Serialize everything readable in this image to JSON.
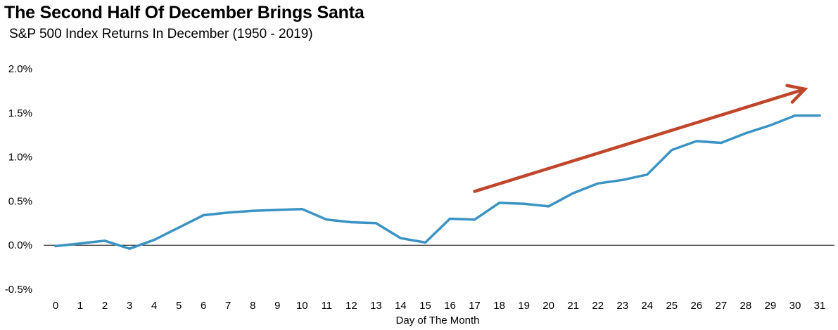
{
  "chart_data": {
    "type": "line",
    "title": "The Second Half Of December Brings Santa",
    "subtitle": "S&P 500 Index Returns In December (1950 - 2019)",
    "xlabel": "Day of The Month",
    "ylabel": "",
    "ylim": [
      -0.5,
      2.0
    ],
    "xlim": [
      0,
      31
    ],
    "y_ticks": [
      {
        "value": 2.0,
        "label": "2.0%"
      },
      {
        "value": 1.5,
        "label": "1.5%"
      },
      {
        "value": 1.0,
        "label": "1.0%"
      },
      {
        "value": 0.5,
        "label": "0.5%"
      },
      {
        "value": 0.0,
        "label": "0.0%"
      },
      {
        "value": -0.5,
        "label": "-0.5%"
      }
    ],
    "x_ticks": [
      "0",
      "1",
      "2",
      "3",
      "4",
      "5",
      "6",
      "7",
      "8",
      "9",
      "10",
      "11",
      "12",
      "13",
      "14",
      "15",
      "16",
      "17",
      "18",
      "19",
      "20",
      "21",
      "22",
      "23",
      "24",
      "25",
      "26",
      "27",
      "28",
      "29",
      "30",
      "31"
    ],
    "series": [
      {
        "name": "S&P 500 Index Returns",
        "color": "#3a93c3",
        "x": [
          0,
          1,
          2,
          3,
          4,
          5,
          6,
          7,
          8,
          9,
          10,
          11,
          12,
          13,
          14,
          15,
          16,
          17,
          18,
          19,
          20,
          21,
          22,
          23,
          24,
          25,
          26,
          27,
          28,
          29,
          30,
          31
        ],
        "values": [
          -0.01,
          0.02,
          0.05,
          -0.04,
          0.06,
          0.2,
          0.34,
          0.37,
          0.39,
          0.4,
          0.41,
          0.29,
          0.26,
          0.25,
          0.08,
          0.03,
          0.3,
          0.29,
          0.48,
          0.47,
          0.44,
          0.59,
          0.7,
          0.74,
          0.8,
          1.08,
          1.18,
          1.16,
          1.27,
          1.36,
          1.47,
          1.47
        ]
      }
    ],
    "annotations": [
      {
        "type": "arrow",
        "color": "#c0462b",
        "from": {
          "x": 17,
          "y": 0.61
        },
        "to": {
          "x": 30.4,
          "y": 1.77
        }
      }
    ],
    "grid": false,
    "legend": "none"
  }
}
